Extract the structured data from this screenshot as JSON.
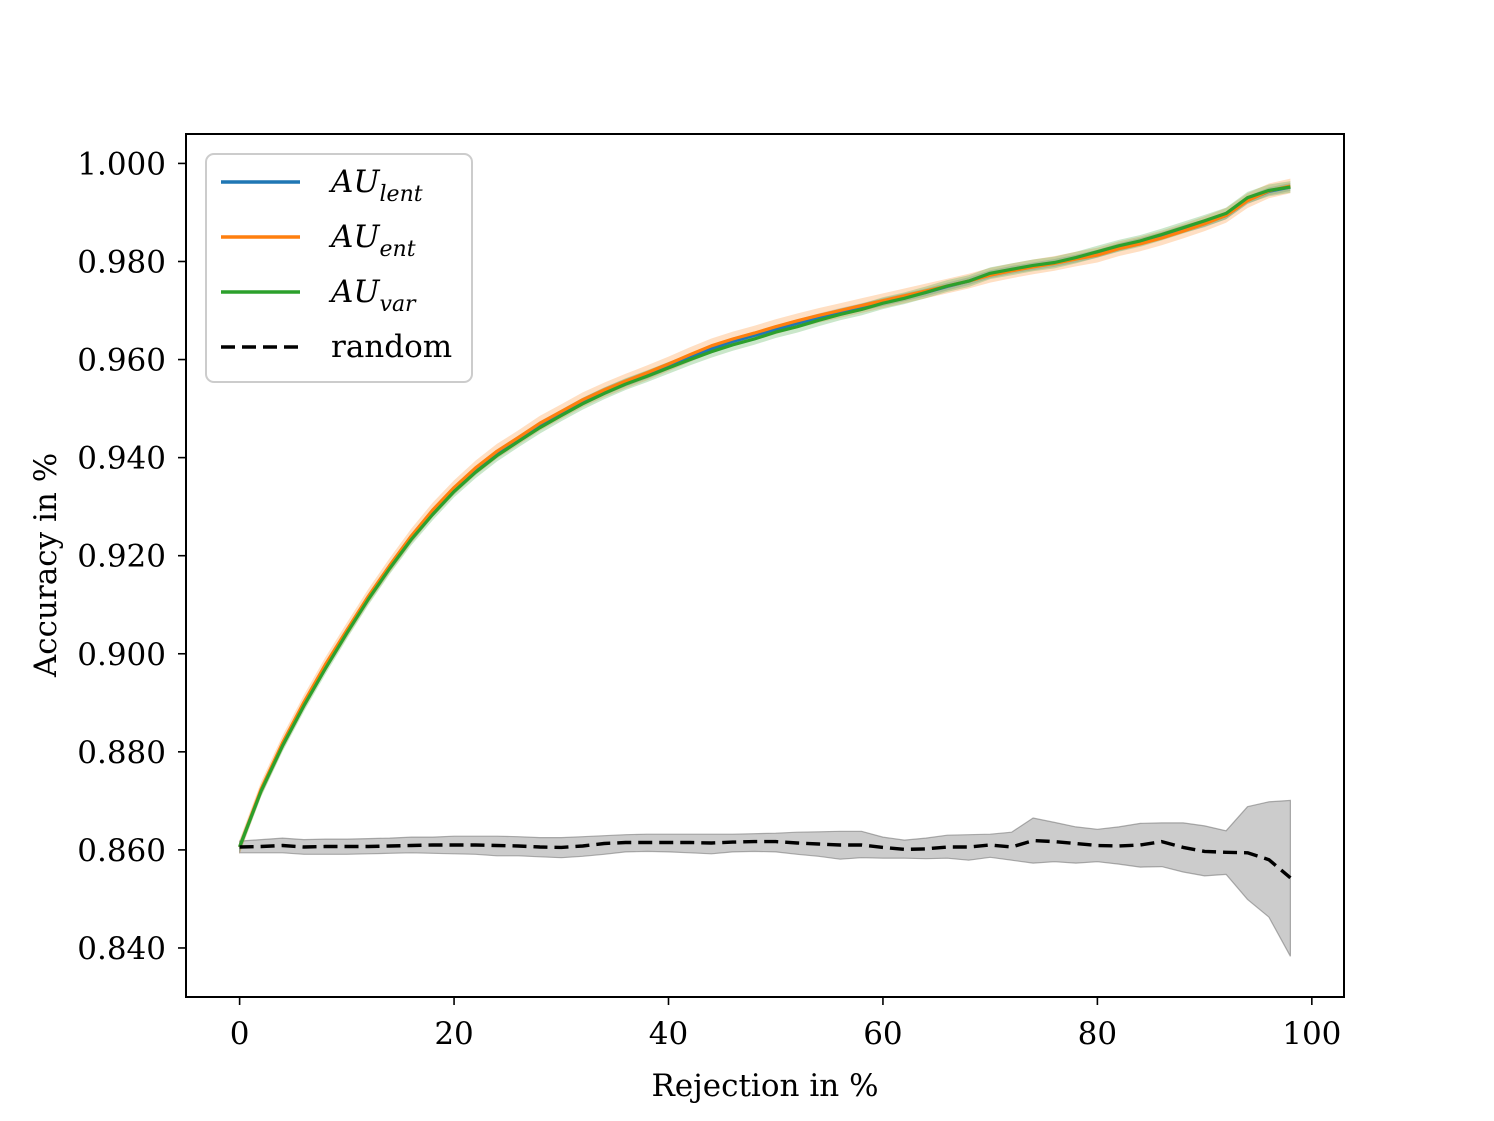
{
  "chart_data": {
    "type": "line",
    "title": "",
    "xlabel": "Rejection in %",
    "ylabel": "Accuracy in %",
    "xlim": [
      -5,
      103
    ],
    "ylim": [
      0.83,
      1.006
    ],
    "xticks": [
      0,
      20,
      40,
      60,
      80,
      100
    ],
    "xtick_labels": [
      "0",
      "20",
      "40",
      "60",
      "80",
      "100"
    ],
    "yticks": [
      0.84,
      0.86,
      0.88,
      0.9,
      0.92,
      0.94,
      0.96,
      0.98,
      1.0
    ],
    "ytick_labels": [
      "0.840",
      "0.860",
      "0.880",
      "0.900",
      "0.920",
      "0.940",
      "0.960",
      "0.980",
      "1.000"
    ],
    "legend_position": "top-left",
    "x": [
      0,
      2,
      4,
      6,
      8,
      10,
      12,
      14,
      16,
      18,
      20,
      22,
      24,
      26,
      28,
      30,
      32,
      34,
      36,
      38,
      40,
      42,
      44,
      46,
      48,
      50,
      52,
      54,
      56,
      58,
      60,
      62,
      64,
      66,
      68,
      70,
      72,
      74,
      76,
      78,
      80,
      82,
      84,
      86,
      88,
      90,
      92,
      94,
      96,
      98
    ],
    "series": [
      {
        "name": "AU",
        "subscript": "lent",
        "color": "#1f77b4",
        "style": "solid",
        "values": [
          0.8606,
          0.8722,
          0.8814,
          0.8896,
          0.8972,
          0.9044,
          0.9113,
          0.9176,
          0.9235,
          0.9287,
          0.9334,
          0.9374,
          0.9409,
          0.9437,
          0.9466,
          0.949,
          0.9514,
          0.9535,
          0.9553,
          0.9569,
          0.9587,
          0.9604,
          0.9622,
          0.9637,
          0.9649,
          0.9662,
          0.9674,
          0.9686,
          0.9697,
          0.9707,
          0.9717,
          0.9727,
          0.9737,
          0.9749,
          0.976,
          0.9774,
          0.9783,
          0.979,
          0.9797,
          0.9806,
          0.9816,
          0.9829,
          0.984,
          0.9852,
          0.9866,
          0.9878,
          0.9894,
          0.9925,
          0.9943,
          0.9952
        ],
        "band": 0.0008
      },
      {
        "name": "AU",
        "subscript": "ent",
        "color": "#ff7f0e",
        "style": "solid",
        "values": [
          0.8606,
          0.8724,
          0.8818,
          0.8901,
          0.8978,
          0.9048,
          0.9117,
          0.918,
          0.924,
          0.9293,
          0.9339,
          0.9379,
          0.9413,
          0.9441,
          0.947,
          0.9494,
          0.9518,
          0.9538,
          0.9556,
          0.9573,
          0.9591,
          0.961,
          0.9628,
          0.9642,
          0.9654,
          0.9667,
          0.9679,
          0.969,
          0.97,
          0.971,
          0.972,
          0.973,
          0.974,
          0.975,
          0.976,
          0.9772,
          0.9781,
          0.9789,
          0.9796,
          0.9805,
          0.9813,
          0.9826,
          0.9836,
          0.9848,
          0.9862,
          0.9877,
          0.9894,
          0.9924,
          0.9944,
          0.9954
        ],
        "band": 0.0015
      },
      {
        "name": "AU",
        "subscript": "var",
        "color": "#2ca02c",
        "style": "solid",
        "values": [
          0.8606,
          0.872,
          0.8812,
          0.8894,
          0.897,
          0.9042,
          0.9111,
          0.9174,
          0.9233,
          0.9284,
          0.9331,
          0.937,
          0.9404,
          0.9433,
          0.9461,
          0.9486,
          0.951,
          0.9531,
          0.955,
          0.9566,
          0.9583,
          0.96,
          0.9616,
          0.963,
          0.9642,
          0.9656,
          0.9667,
          0.968,
          0.9692,
          0.9702,
          0.9715,
          0.9725,
          0.9737,
          0.975,
          0.976,
          0.9776,
          0.9784,
          0.9792,
          0.9798,
          0.9808,
          0.982,
          0.9832,
          0.9842,
          0.9855,
          0.9869,
          0.9883,
          0.9898,
          0.993,
          0.9945,
          0.9952
        ],
        "band": 0.0012
      },
      {
        "name": "random",
        "subscript": "",
        "color": "#000000",
        "style": "dashed",
        "values": [
          0.8606,
          0.8607,
          0.8609,
          0.8606,
          0.8607,
          0.8607,
          0.8607,
          0.8608,
          0.8609,
          0.861,
          0.861,
          0.861,
          0.8609,
          0.8608,
          0.8606,
          0.8605,
          0.8608,
          0.8613,
          0.8615,
          0.8615,
          0.8615,
          0.8615,
          0.8614,
          0.8616,
          0.8617,
          0.8617,
          0.8614,
          0.8612,
          0.861,
          0.861,
          0.8605,
          0.8601,
          0.8602,
          0.8606,
          0.8606,
          0.861,
          0.8606,
          0.8619,
          0.8617,
          0.8613,
          0.8609,
          0.8608,
          0.861,
          0.8617,
          0.8605,
          0.8597,
          0.8595,
          0.8594,
          0.858,
          0.8543
        ],
        "band_lower": [
          0.8594,
          0.8594,
          0.8594,
          0.8591,
          0.8591,
          0.8591,
          0.8592,
          0.8593,
          0.8594,
          0.8593,
          0.8592,
          0.8591,
          0.8588,
          0.8588,
          0.8586,
          0.8584,
          0.8587,
          0.8591,
          0.8596,
          0.8597,
          0.8596,
          0.8594,
          0.8592,
          0.8596,
          0.8597,
          0.8596,
          0.8591,
          0.8587,
          0.8581,
          0.8584,
          0.8583,
          0.8583,
          0.8582,
          0.8583,
          0.8579,
          0.8585,
          0.8579,
          0.8573,
          0.8576,
          0.8573,
          0.8576,
          0.8571,
          0.8565,
          0.8566,
          0.8555,
          0.8547,
          0.855,
          0.8499,
          0.8463,
          0.8383
        ],
        "band_upper": [
          0.8618,
          0.8621,
          0.8624,
          0.8621,
          0.8622,
          0.8622,
          0.8623,
          0.8624,
          0.8626,
          0.8626,
          0.8628,
          0.8628,
          0.8628,
          0.8627,
          0.8625,
          0.8625,
          0.8627,
          0.8629,
          0.8631,
          0.8632,
          0.8632,
          0.8632,
          0.8632,
          0.8632,
          0.8633,
          0.8634,
          0.8636,
          0.8637,
          0.8638,
          0.8638,
          0.8626,
          0.862,
          0.8624,
          0.863,
          0.8631,
          0.8632,
          0.8636,
          0.8665,
          0.8656,
          0.8647,
          0.8642,
          0.8647,
          0.8654,
          0.8655,
          0.8655,
          0.8649,
          0.8639,
          0.8688,
          0.8698,
          0.8701
        ]
      }
    ]
  }
}
